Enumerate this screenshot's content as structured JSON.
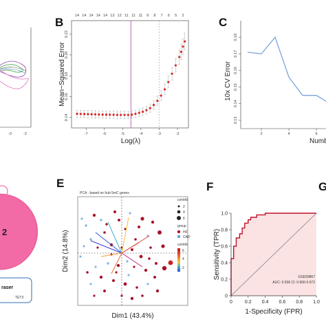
{
  "panels": {
    "A": {
      "letter": "",
      "ticks": [
        "-3",
        "-2"
      ]
    },
    "B": {
      "letter": "B",
      "top_ticks": [
        "14",
        "14",
        "14",
        "14",
        "14",
        "13",
        "12",
        "11",
        "11",
        "11",
        "9",
        "8",
        "7",
        "6",
        "5",
        "2"
      ],
      "ylabel": "Mean−Squared Error",
      "xlabel": "Log(λ)",
      "xticks": [
        "-7",
        "-6",
        "-5",
        "-4",
        "-3",
        "-2"
      ],
      "yticks": [
        "0.14",
        "0.16",
        "0.18",
        "0.20",
        "0.22"
      ]
    },
    "C": {
      "letter": "C",
      "ylabel": "10x CV Error",
      "xlabel": "Number",
      "yticks": [
        "0.18",
        "0.17",
        "0.16",
        "0.15",
        "0.14",
        "0.13"
      ],
      "xticks": [
        "2",
        "4",
        "6"
      ]
    },
    "D": {
      "letter": "",
      "number": "2",
      "legend_title": "raser",
      "legend_item": "TET3"
    },
    "E": {
      "letter": "E",
      "subtitle": "PCA - based on hub 5mC genes",
      "xlabel": "Dim1 (43.4%)",
      "ylabel": "Dim2 (14.8%)",
      "legend": {
        "contrib_title": "contrib",
        "size_items": [
          "2",
          "4",
          "6"
        ],
        "group_title": "group",
        "group_items": [
          "HF",
          "CAD"
        ],
        "color_title": "contrib",
        "color_ticks": [
          "6",
          "4",
          "2"
        ]
      }
    },
    "F": {
      "letter": "F",
      "xlabel": "1-Specificity (FPR)",
      "ylabel": "Sensitivity (TPR)",
      "xticks": [
        "0",
        "0.2",
        "0.4",
        "0.6",
        "0.8",
        "1.0"
      ],
      "yticks": [
        "0",
        "0.2",
        "0.4",
        "0.6",
        "0.8",
        "1.0"
      ],
      "dataset": "GSE59867",
      "auc_text": "AUC: 0.936  CI: 0.900-0.972"
    },
    "G": {
      "letter": "G"
    }
  },
  "chart_data": [
    {
      "panel": "B",
      "type": "scatter",
      "xlabel": "Log(λ)",
      "ylabel": "Mean−Squared Error",
      "xlim": [
        -7.8,
        -1.4
      ],
      "ylim": [
        0.13,
        0.225
      ],
      "x": [
        -7.5,
        -7.3,
        -7.1,
        -6.9,
        -6.7,
        -6.5,
        -6.3,
        -6.1,
        -5.9,
        -5.7,
        -5.5,
        -5.3,
        -5.1,
        -4.9,
        -4.7,
        -4.5,
        -4.3,
        -4.1,
        -3.9,
        -3.7,
        -3.5,
        -3.3,
        -3.1,
        -2.9,
        -2.7,
        -2.5,
        -2.3,
        -2.1,
        -1.9,
        -1.8,
        -1.7,
        -1.6
      ],
      "y": [
        0.1435,
        0.1434,
        0.1433,
        0.1432,
        0.1431,
        0.143,
        0.1429,
        0.1428,
        0.1427,
        0.1427,
        0.1426,
        0.1425,
        0.1425,
        0.1425,
        0.1425,
        0.1427,
        0.1435,
        0.1445,
        0.1455,
        0.147,
        0.149,
        0.152,
        0.156,
        0.161,
        0.167,
        0.174,
        0.182,
        0.19,
        0.198,
        0.203,
        0.208,
        0.213
      ],
      "error": [
        0.0035,
        0.0035,
        0.0035,
        0.0035,
        0.0035,
        0.0035,
        0.0035,
        0.0035,
        0.0035,
        0.0035,
        0.0035,
        0.0035,
        0.0035,
        0.0035,
        0.0035,
        0.0035,
        0.0035,
        0.0036,
        0.0037,
        0.0038,
        0.004,
        0.0042,
        0.0045,
        0.0048,
        0.0052,
        0.0056,
        0.006,
        0.0065,
        0.007,
        0.0073,
        0.0076,
        0.008
      ],
      "vlines": [
        -4.55,
        -3.0
      ]
    },
    {
      "panel": "C",
      "type": "line",
      "xlabel": "Number",
      "ylabel": "10x CV Error",
      "xlim": [
        0.5,
        7.5
      ],
      "ylim": [
        0.125,
        0.19
      ],
      "x": [
        1,
        2,
        3,
        4,
        5,
        6,
        7
      ],
      "y": [
        0.171,
        0.17,
        0.18,
        0.156,
        0.145,
        0.145,
        0.14
      ]
    },
    {
      "panel": "F",
      "type": "line",
      "xlabel": "1-Specificity (FPR)",
      "ylabel": "Sensitivity (TPR)",
      "xlim": [
        0,
        1
      ],
      "ylim": [
        0,
        1
      ],
      "x": [
        0,
        0,
        0.03,
        0.03,
        0.06,
        0.06,
        0.1,
        0.1,
        0.13,
        0.13,
        0.16,
        0.16,
        0.2,
        0.2,
        0.23,
        0.23,
        0.3,
        0.3,
        0.4,
        0.4,
        0.6,
        1.0
      ],
      "y": [
        0,
        0.45,
        0.45,
        0.6,
        0.6,
        0.7,
        0.7,
        0.75,
        0.75,
        0.82,
        0.82,
        0.88,
        0.88,
        0.92,
        0.92,
        0.95,
        0.95,
        0.98,
        0.98,
        1.0,
        1.0,
        1.0
      ],
      "auc": 0.936,
      "ci": [
        0.9,
        0.972
      ]
    }
  ]
}
